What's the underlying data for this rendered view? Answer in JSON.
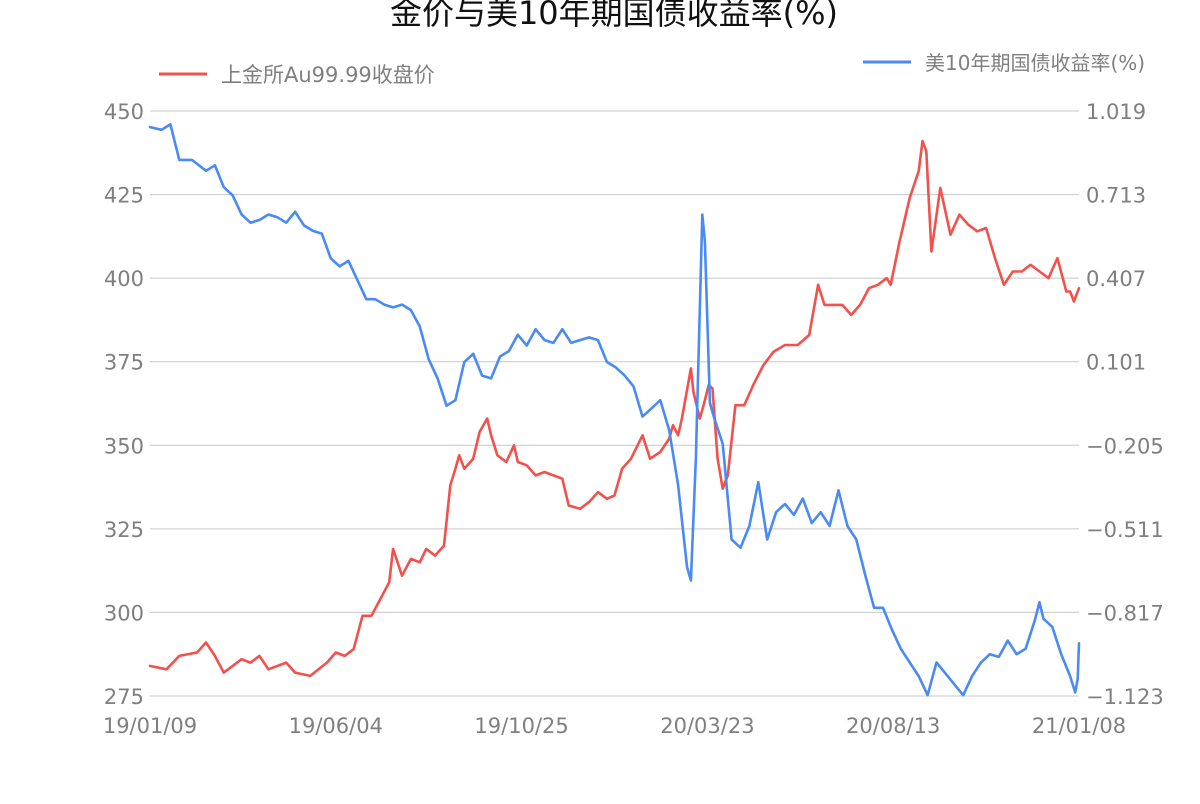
{
  "chart_data": {
    "type": "line",
    "title": "金价与美10年期国债收益率(%)",
    "x_tick_labels": [
      "19/01/09",
      "19/06/04",
      "19/10/25",
      "20/03/23",
      "20/08/13",
      "21/01/08"
    ],
    "x_range": [
      "2019-01-09",
      "2021-01-08"
    ],
    "y_left": {
      "ticks": [
        "450",
        "425",
        "400",
        "375",
        "350",
        "325",
        "300",
        "275"
      ],
      "range": [
        275,
        450
      ]
    },
    "y_right": {
      "ticks": [
        "1.019",
        "0.713",
        "0.407",
        "0.101",
        "−0.205",
        "−0.511",
        "−0.817",
        "−1.123"
      ],
      "range": [
        -1.123,
        1.019
      ]
    },
    "grid": true,
    "series": [
      {
        "name": "上金所Au99.99收盘价",
        "axis": "left",
        "color": "#f2514c",
        "points": [
          [
            "2019-01-09",
            284
          ],
          [
            "2019-01-22",
            283
          ],
          [
            "2019-02-01",
            287
          ],
          [
            "2019-02-15",
            288
          ],
          [
            "2019-02-22",
            291
          ],
          [
            "2019-03-01",
            287
          ],
          [
            "2019-03-08",
            282
          ],
          [
            "2019-03-15",
            284
          ],
          [
            "2019-03-22",
            286
          ],
          [
            "2019-03-29",
            285
          ],
          [
            "2019-04-05",
            287
          ],
          [
            "2019-04-12",
            283
          ],
          [
            "2019-04-26",
            285
          ],
          [
            "2019-05-03",
            282
          ],
          [
            "2019-05-15",
            281
          ],
          [
            "2019-05-28",
            285
          ],
          [
            "2019-06-04",
            288
          ],
          [
            "2019-06-11",
            287
          ],
          [
            "2019-06-18",
            289
          ],
          [
            "2019-06-25",
            299
          ],
          [
            "2019-07-02",
            299
          ],
          [
            "2019-07-09",
            304
          ],
          [
            "2019-07-16",
            309
          ],
          [
            "2019-07-19",
            319
          ],
          [
            "2019-07-26",
            311
          ],
          [
            "2019-08-02",
            316
          ],
          [
            "2019-08-09",
            315
          ],
          [
            "2019-08-14",
            319
          ],
          [
            "2019-08-21",
            317
          ],
          [
            "2019-08-28",
            320
          ],
          [
            "2019-09-02",
            338
          ],
          [
            "2019-09-06",
            343
          ],
          [
            "2019-09-09",
            347
          ],
          [
            "2019-09-13",
            343
          ],
          [
            "2019-09-20",
            346
          ],
          [
            "2019-09-25",
            354
          ],
          [
            "2019-10-01",
            358
          ],
          [
            "2019-10-04",
            353
          ],
          [
            "2019-10-09",
            347
          ],
          [
            "2019-10-16",
            345
          ],
          [
            "2019-10-22",
            350
          ],
          [
            "2019-10-25",
            345
          ],
          [
            "2019-11-01",
            344
          ],
          [
            "2019-11-08",
            341
          ],
          [
            "2019-11-15",
            342
          ],
          [
            "2019-11-22",
            341
          ],
          [
            "2019-11-29",
            340
          ],
          [
            "2019-12-04",
            332
          ],
          [
            "2019-12-13",
            331
          ],
          [
            "2019-12-20",
            333
          ],
          [
            "2019-12-27",
            336
          ],
          [
            "2020-01-03",
            334
          ],
          [
            "2020-01-09",
            335
          ],
          [
            "2020-01-15",
            343
          ],
          [
            "2020-01-22",
            346
          ],
          [
            "2020-01-31",
            353
          ],
          [
            "2020-02-06",
            346
          ],
          [
            "2020-02-14",
            348
          ],
          [
            "2020-02-21",
            352
          ],
          [
            "2020-02-24",
            356
          ],
          [
            "2020-02-28",
            353
          ],
          [
            "2020-03-02",
            358
          ],
          [
            "2020-03-09",
            373
          ],
          [
            "2020-03-11",
            366
          ],
          [
            "2020-03-16",
            358
          ],
          [
            "2020-03-19",
            362
          ],
          [
            "2020-03-23",
            368
          ],
          [
            "2020-03-26",
            367
          ],
          [
            "2020-03-30",
            346
          ],
          [
            "2020-04-03",
            337
          ],
          [
            "2020-04-07",
            341
          ],
          [
            "2020-04-13",
            362
          ],
          [
            "2020-04-20",
            362
          ],
          [
            "2020-04-27",
            368
          ],
          [
            "2020-05-05",
            374
          ],
          [
            "2020-05-13",
            378
          ],
          [
            "2020-05-22",
            380
          ],
          [
            "2020-06-01",
            380
          ],
          [
            "2020-06-10",
            383
          ],
          [
            "2020-06-17",
            398
          ],
          [
            "2020-06-22",
            392
          ],
          [
            "2020-06-29",
            392
          ],
          [
            "2020-07-06",
            392
          ],
          [
            "2020-07-13",
            389
          ],
          [
            "2020-07-20",
            392
          ],
          [
            "2020-07-27",
            397
          ],
          [
            "2020-08-03",
            398
          ],
          [
            "2020-08-10",
            400
          ],
          [
            "2020-08-13",
            398
          ],
          [
            "2020-08-20",
            411
          ],
          [
            "2020-08-28",
            424
          ],
          [
            "2020-09-04",
            432
          ],
          [
            "2020-09-07",
            441
          ],
          [
            "2020-09-10",
            438
          ],
          [
            "2020-09-14",
            408
          ],
          [
            "2020-09-21",
            427
          ],
          [
            "2020-09-29",
            413
          ],
          [
            "2020-10-06",
            419
          ],
          [
            "2020-10-13",
            416
          ],
          [
            "2020-10-20",
            414
          ],
          [
            "2020-10-27",
            415
          ],
          [
            "2020-11-03",
            406
          ],
          [
            "2020-11-10",
            398
          ],
          [
            "2020-11-17",
            402
          ],
          [
            "2020-11-24",
            402
          ],
          [
            "2020-12-01",
            404
          ],
          [
            "2020-12-08",
            402
          ],
          [
            "2020-12-15",
            400
          ],
          [
            "2020-12-22",
            406
          ],
          [
            "2020-12-29",
            396
          ],
          [
            "2021-01-01",
            396
          ],
          [
            "2021-01-04",
            393
          ],
          [
            "2021-01-08",
            397
          ]
        ]
      },
      {
        "name": "美10年期国债收益率(%)",
        "axis": "right",
        "color": "#4a8af4",
        "points": [
          [
            "2019-01-09",
            0.96
          ],
          [
            "2019-01-18",
            0.95
          ],
          [
            "2019-01-25",
            0.97
          ],
          [
            "2019-02-01",
            0.84
          ],
          [
            "2019-02-11",
            0.84
          ],
          [
            "2019-02-22",
            0.8
          ],
          [
            "2019-03-01",
            0.82
          ],
          [
            "2019-03-08",
            0.74
          ],
          [
            "2019-03-15",
            0.71
          ],
          [
            "2019-03-22",
            0.64
          ],
          [
            "2019-03-29",
            0.61
          ],
          [
            "2019-04-05",
            0.62
          ],
          [
            "2019-04-12",
            0.64
          ],
          [
            "2019-04-19",
            0.63
          ],
          [
            "2019-04-26",
            0.61
          ],
          [
            "2019-05-03",
            0.65
          ],
          [
            "2019-05-10",
            0.6
          ],
          [
            "2019-05-17",
            0.58
          ],
          [
            "2019-05-24",
            0.57
          ],
          [
            "2019-05-31",
            0.48
          ],
          [
            "2019-06-07",
            0.45
          ],
          [
            "2019-06-14",
            0.47
          ],
          [
            "2019-06-21",
            0.4
          ],
          [
            "2019-06-28",
            0.33
          ],
          [
            "2019-07-05",
            0.33
          ],
          [
            "2019-07-12",
            0.31
          ],
          [
            "2019-07-19",
            0.3
          ],
          [
            "2019-07-26",
            0.31
          ],
          [
            "2019-08-02",
            0.29
          ],
          [
            "2019-08-09",
            0.23
          ],
          [
            "2019-08-16",
            0.11
          ],
          [
            "2019-08-23",
            0.04
          ],
          [
            "2019-08-30",
            -0.06
          ],
          [
            "2019-09-06",
            -0.04
          ],
          [
            "2019-09-13",
            0.1
          ],
          [
            "2019-09-20",
            0.13
          ],
          [
            "2019-09-27",
            0.05
          ],
          [
            "2019-10-04",
            0.04
          ],
          [
            "2019-10-11",
            0.12
          ],
          [
            "2019-10-18",
            0.14
          ],
          [
            "2019-10-25",
            0.2
          ],
          [
            "2019-11-01",
            0.16
          ],
          [
            "2019-11-08",
            0.22
          ],
          [
            "2019-11-15",
            0.18
          ],
          [
            "2019-11-22",
            0.17
          ],
          [
            "2019-11-29",
            0.22
          ],
          [
            "2019-12-06",
            0.17
          ],
          [
            "2019-12-13",
            0.18
          ],
          [
            "2019-12-20",
            0.19
          ],
          [
            "2019-12-27",
            0.18
          ],
          [
            "2020-01-03",
            0.1
          ],
          [
            "2020-01-10",
            0.08
          ],
          [
            "2020-01-17",
            0.05
          ],
          [
            "2020-01-24",
            0.01
          ],
          [
            "2020-01-31",
            -0.1
          ],
          [
            "2020-02-07",
            -0.07
          ],
          [
            "2020-02-14",
            -0.04
          ],
          [
            "2020-02-21",
            -0.15
          ],
          [
            "2020-02-28",
            -0.35
          ],
          [
            "2020-03-06",
            -0.65
          ],
          [
            "2020-03-09",
            -0.7
          ],
          [
            "2020-03-13",
            -0.25
          ],
          [
            "2020-03-18",
            0.64
          ],
          [
            "2020-03-20",
            0.54
          ],
          [
            "2020-03-24",
            -0.05
          ],
          [
            "2020-03-27",
            -0.1
          ],
          [
            "2020-04-03",
            -0.2
          ],
          [
            "2020-04-10",
            -0.55
          ],
          [
            "2020-04-17",
            -0.58
          ],
          [
            "2020-04-24",
            -0.5
          ],
          [
            "2020-05-01",
            -0.34
          ],
          [
            "2020-05-08",
            -0.55
          ],
          [
            "2020-05-15",
            -0.45
          ],
          [
            "2020-05-22",
            -0.42
          ],
          [
            "2020-05-29",
            -0.46
          ],
          [
            "2020-06-05",
            -0.4
          ],
          [
            "2020-06-12",
            -0.49
          ],
          [
            "2020-06-19",
            -0.45
          ],
          [
            "2020-06-26",
            -0.5
          ],
          [
            "2020-07-03",
            -0.37
          ],
          [
            "2020-07-10",
            -0.5
          ],
          [
            "2020-07-17",
            -0.55
          ],
          [
            "2020-07-24",
            -0.68
          ],
          [
            "2020-07-31",
            -0.8
          ],
          [
            "2020-08-07",
            -0.8
          ],
          [
            "2020-08-14",
            -0.88
          ],
          [
            "2020-08-21",
            -0.95
          ],
          [
            "2020-08-28",
            -1.0
          ],
          [
            "2020-09-04",
            -1.05
          ],
          [
            "2020-09-11",
            -1.12
          ],
          [
            "2020-09-18",
            -1.0
          ],
          [
            "2020-09-25",
            -1.04
          ],
          [
            "2020-10-02",
            -1.08
          ],
          [
            "2020-10-09",
            -1.12
          ],
          [
            "2020-10-16",
            -1.05
          ],
          [
            "2020-10-23",
            -1.0
          ],
          [
            "2020-10-30",
            -0.97
          ],
          [
            "2020-11-06",
            -0.98
          ],
          [
            "2020-11-13",
            -0.92
          ],
          [
            "2020-11-20",
            -0.97
          ],
          [
            "2020-11-27",
            -0.95
          ],
          [
            "2020-12-04",
            -0.85
          ],
          [
            "2020-12-08",
            -0.78
          ],
          [
            "2020-12-11",
            -0.84
          ],
          [
            "2020-12-18",
            -0.87
          ],
          [
            "2020-12-25",
            -0.97
          ],
          [
            "2021-01-01",
            -1.05
          ],
          [
            "2021-01-05",
            -1.11
          ],
          [
            "2021-01-07",
            -1.06
          ],
          [
            "2021-01-08",
            -0.93
          ]
        ]
      }
    ]
  }
}
